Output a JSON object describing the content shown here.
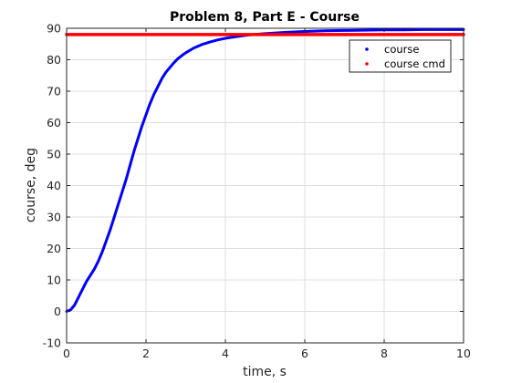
{
  "chart_data": {
    "type": "line",
    "title": "Problem 8, Part E - Course",
    "xlabel": "time, s",
    "ylabel": "course, deg",
    "xlim": [
      0,
      10
    ],
    "ylim": [
      -10,
      90
    ],
    "xticks": [
      0,
      2,
      4,
      6,
      8,
      10
    ],
    "yticks": [
      -10,
      0,
      10,
      20,
      30,
      40,
      50,
      60,
      70,
      80,
      90
    ],
    "grid": true,
    "legend_position": "top-right",
    "series": [
      {
        "name": "course",
        "color": "#0000ff",
        "x": [
          0,
          0.1,
          0.2,
          0.3,
          0.4,
          0.5,
          0.6,
          0.7,
          0.8,
          0.9,
          1.0,
          1.1,
          1.2,
          1.3,
          1.4,
          1.5,
          1.6,
          1.7,
          1.8,
          1.9,
          2.0,
          2.1,
          2.2,
          2.3,
          2.4,
          2.5,
          2.6,
          2.7,
          2.8,
          2.9,
          3.0,
          3.2,
          3.4,
          3.6,
          3.8,
          4.0,
          4.3,
          4.6,
          5.0,
          5.5,
          6.0,
          6.5,
          7.0,
          7.5,
          8.0,
          8.5,
          9.0,
          9.5,
          10.0
        ],
        "y": [
          0,
          0.5,
          2,
          4.5,
          7,
          9.5,
          11.5,
          13.5,
          16,
          19,
          22.5,
          26,
          30,
          34,
          38,
          42,
          46.5,
          51,
          55,
          59,
          62.5,
          66,
          69,
          71.5,
          74,
          76,
          77.5,
          79,
          80.3,
          81.3,
          82.2,
          83.7,
          84.8,
          85.6,
          86.3,
          86.8,
          87.4,
          87.9,
          88.3,
          88.7,
          89.0,
          89.2,
          89.3,
          89.4,
          89.5,
          89.5,
          89.6,
          89.6,
          89.6
        ]
      },
      {
        "name": "course cmd",
        "color": "#ff0000",
        "x": [
          0,
          10
        ],
        "y": [
          88,
          88
        ]
      }
    ]
  }
}
